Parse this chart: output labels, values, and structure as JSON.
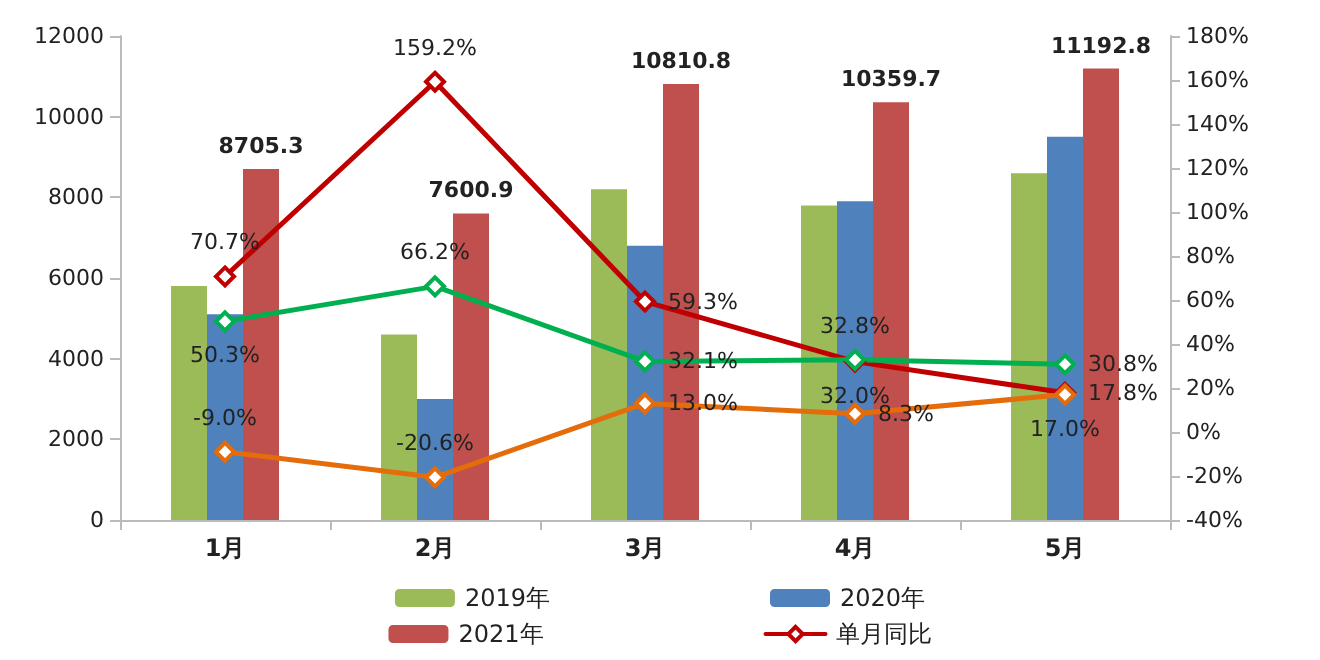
{
  "chart_data": {
    "type": "bar",
    "categories": [
      "1月",
      "2月",
      "3月",
      "4月",
      "5月"
    ],
    "series": [
      {
        "name": "2019年",
        "color": "#9bbb59",
        "values": [
          5800,
          4600,
          8200,
          7800,
          8600
        ]
      },
      {
        "name": "2020年",
        "color": "#4f81bd",
        "values": [
          5100,
          3000,
          6800,
          7900,
          9500
        ]
      },
      {
        "name": "2021年",
        "color": "#c0504d",
        "values": [
          8705.3,
          7600.9,
          10810.8,
          10359.7,
          11192.8
        ],
        "value_labels": [
          "8705.3",
          "7600.9",
          "10810.8",
          "10359.7",
          "11192.8"
        ]
      },
      {
        "name": "单月同比",
        "type": "line",
        "axis": "y2",
        "color": "#c00000",
        "values": [
          70.7,
          159.2,
          59.3,
          32.0,
          17.8
        ],
        "value_labels": [
          "70.7%",
          "159.2%",
          "59.3%",
          "32.0%",
          "17.8%"
        ]
      },
      {
        "type": "line",
        "axis": "y2",
        "color": "#00b050",
        "values": [
          50.3,
          66.2,
          32.1,
          32.8,
          30.8
        ],
        "value_labels": [
          "50.3%",
          "66.2%",
          "32.1%",
          "32.8%",
          "30.8%"
        ]
      },
      {
        "type": "line",
        "axis": "y2",
        "color": "#e46c0a",
        "values": [
          -9.0,
          -20.6,
          13.0,
          8.3,
          17.0
        ],
        "value_labels": [
          "-9.0%",
          "-20.6%",
          "13.0%",
          "8.3%",
          "17.0%"
        ]
      }
    ],
    "ylim": [
      0,
      12000
    ],
    "yticks": [
      0,
      2000,
      4000,
      6000,
      8000,
      10000,
      12000
    ],
    "y2lim": [
      -40,
      180
    ],
    "y2ticks": [
      {
        "value": -40,
        "label": "-40%"
      },
      {
        "value": -20,
        "label": "-20%"
      },
      {
        "value": 0,
        "label": "0%"
      },
      {
        "value": 20,
        "label": "20%"
      },
      {
        "value": 40,
        "label": "40%"
      },
      {
        "value": 60,
        "label": "60%"
      },
      {
        "value": 80,
        "label": "80%"
      },
      {
        "value": 100,
        "label": "100%"
      },
      {
        "value": 120,
        "label": "120%"
      },
      {
        "value": 140,
        "label": "140%"
      },
      {
        "value": 160,
        "label": "160%"
      },
      {
        "value": 180,
        "label": "180%"
      }
    ],
    "grid": false,
    "legend": "bottom",
    "marker": "diamond",
    "line_style": "solid"
  }
}
